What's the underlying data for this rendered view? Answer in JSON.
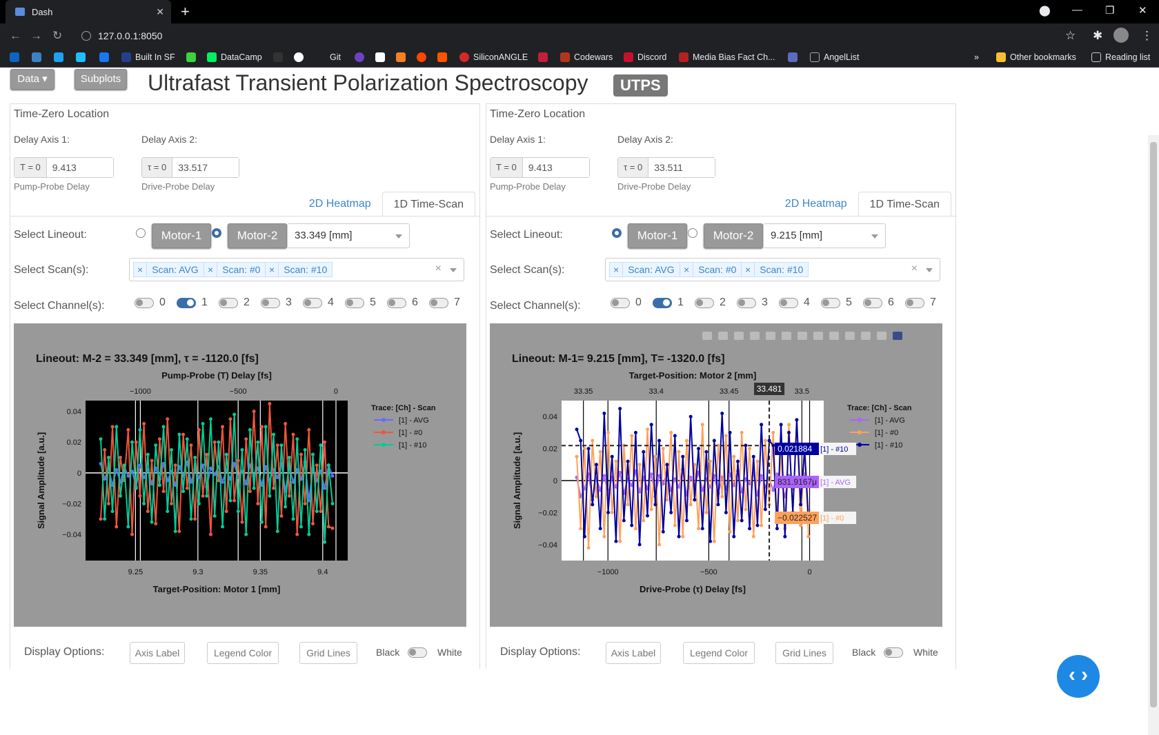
{
  "browser": {
    "tab_title": "Dash",
    "url": "127.0.0.1:8050",
    "bookmarks": [
      "Built In SF",
      "DataCamp",
      "Git",
      "SiliconANGLE",
      "Codewars",
      "Discord",
      "Media Bias Fact Ch...",
      "AngelList",
      "Other bookmarks",
      "Reading list"
    ],
    "more": "»"
  },
  "header": {
    "data_btn": "Data",
    "subplots_btn": "Subplots",
    "title": "Ultrafast Transient Polarization Spectroscopy",
    "badge": "UTPS"
  },
  "panels": [
    {
      "section": "Time-Zero Location",
      "axis1_label": "Delay Axis 1:",
      "axis2_label": "Delay Axis 2:",
      "t0_addon": "T = 0",
      "t0_value": "9.413",
      "t0_hint": "Pump-Probe Delay",
      "tau0_addon": "τ = 0",
      "tau0_value": "33.517",
      "tau0_hint": "Drive-Probe Delay",
      "tab_heatmap": "2D Heatmap",
      "tab_timescan": "1D Time-Scan",
      "lineout_label": "Select Lineout:",
      "motor1": "Motor-1",
      "motor2": "Motor-2",
      "lineout_value": "33.349 [mm]",
      "scans_label": "Select Scan(s):",
      "scans": [
        "Scan: AVG",
        "Scan: #0",
        "Scan: #10"
      ],
      "channels_label": "Select Channel(s):",
      "channels": [
        "0",
        "1",
        "2",
        "3",
        "4",
        "5",
        "6",
        "7"
      ],
      "display_label": "Display Options:",
      "opt_axis": "Axis Label",
      "opt_legend": "Legend Color",
      "opt_grid": "Grid Lines",
      "opt_black": "Black",
      "opt_white": "White"
    },
    {
      "section": "Time-Zero Location",
      "axis1_label": "Delay Axis 1:",
      "axis2_label": "Delay Axis 2:",
      "t0_addon": "T = 0",
      "t0_value": "9.413",
      "t0_hint": "Pump-Probe Delay",
      "tau0_addon": "τ = 0",
      "tau0_value": "33.511",
      "tau0_hint": "Drive-Probe Delay",
      "tab_heatmap": "2D Heatmap",
      "tab_timescan": "1D Time-Scan",
      "lineout_label": "Select Lineout:",
      "motor1": "Motor-1",
      "motor2": "Motor-2",
      "lineout_value": "9.215 [mm]",
      "scans_label": "Select Scan(s):",
      "scans": [
        "Scan: AVG",
        "Scan: #0",
        "Scan: #10"
      ],
      "channels_label": "Select Channel(s):",
      "channels": [
        "0",
        "1",
        "2",
        "3",
        "4",
        "5",
        "6",
        "7"
      ],
      "display_label": "Display Options:",
      "opt_axis": "Axis Label",
      "opt_legend": "Legend Color",
      "opt_grid": "Grid Lines",
      "opt_black": "Black",
      "opt_white": "White"
    }
  ],
  "chart_data": [
    {
      "type": "line",
      "title": "Lineout: M-2 = 33.349 [mm], τ = -1120.0 [fs]",
      "xlabel": "Target-Position: Motor 1 [mm]",
      "x_ticks": [
        "9.25",
        "9.3",
        "9.35",
        "9.4"
      ],
      "xlim": [
        9.21,
        9.42
      ],
      "x2label": "Pump-Probe (T) Delay [fs]",
      "x2_ticks": [
        "−1000",
        "−500",
        "0"
      ],
      "ylabel": "Signal Amplitude [a.u.]",
      "y_ticks": [
        "0.04",
        "0.02",
        "0",
        "−0.02",
        "−0.04"
      ],
      "ylim": [
        -0.057,
        0.047
      ],
      "background": "#000000",
      "grid": true,
      "legend_position": "right",
      "legend_title": "Trace: [Ch] - Scan",
      "series": [
        {
          "name": "[1]  -  AVG",
          "color": "#636efa",
          "values": [
            0.006,
            -0.004,
            0.003,
            -0.008,
            0.002,
            -0.006,
            0.004,
            -0.002,
            0.001,
            -0.009,
            0.005,
            -0.003,
            0.002,
            -0.007,
            0.003,
            -0.004,
            0.006,
            -0.005,
            0.001,
            -0.008,
            0.004,
            -0.002,
            0.007,
            -0.006,
            0.002,
            -0.003,
            0.005,
            -0.009,
            0.003,
            -0.001,
            0.004,
            -0.006,
            0.002,
            -0.004,
            0.006,
            -0.003,
            0.001,
            -0.007,
            0.005,
            -0.002,
            0.003,
            -0.008,
            0.004,
            -0.005,
            0.002,
            -0.003,
            0.006,
            -0.012,
            0.004,
            -0.006,
            0.002,
            -0.004,
            0.007,
            -0.018,
            0.003,
            -0.005,
            0.001,
            -0.01,
            0.005,
            -0.002
          ]
        },
        {
          "name": "[1]  -  #0",
          "color": "#ef553b",
          "values": [
            -0.03,
            0.015,
            -0.02,
            0.03,
            -0.035,
            0.01,
            -0.005,
            0.028,
            -0.04,
            0.02,
            -0.015,
            0.032,
            -0.025,
            0.008,
            -0.033,
            0.022,
            -0.012,
            0.035,
            -0.02,
            0.005,
            -0.038,
            0.025,
            -0.01,
            0.018,
            -0.03,
            0.028,
            -0.015,
            0.012,
            -0.04,
            0.02,
            -0.005,
            0.03,
            -0.025,
            0.035,
            -0.018,
            0.008,
            -0.032,
            0.022,
            -0.012,
            0.04,
            -0.02,
            0.03,
            -0.035,
            0.045,
            -0.01,
            0.018,
            -0.028,
            0.032,
            -0.015,
            0.025,
            -0.04,
            0.012,
            -0.02,
            0.028,
            -0.033,
            0.005,
            -0.025,
            0.02,
            -0.035,
            -0.036
          ]
        },
        {
          "name": "[1]  -  #10",
          "color": "#00cc96",
          "values": [
            0.022,
            -0.03,
            0.01,
            -0.025,
            0.03,
            -0.015,
            0.005,
            -0.035,
            0.02,
            -0.01,
            0.028,
            -0.02,
            0.012,
            -0.032,
            0.018,
            -0.008,
            0.03,
            -0.025,
            0.015,
            -0.038,
            0.025,
            -0.012,
            0.022,
            -0.03,
            0.01,
            -0.02,
            0.032,
            -0.015,
            0.035,
            -0.028,
            0.02,
            -0.035,
            0.012,
            -0.018,
            0.038,
            -0.025,
            0.015,
            -0.04,
            0.028,
            -0.01,
            0.02,
            -0.032,
            0.03,
            -0.015,
            0.025,
            -0.038,
            0.018,
            -0.022,
            0.01,
            -0.03,
            0.022,
            -0.035,
            0.015,
            -0.04,
            0.012,
            -0.025,
            0.018,
            -0.045,
            0.005,
            -0.02
          ]
        }
      ]
    },
    {
      "type": "line",
      "title": "Lineout: M-1= 9.215 [mm], T= -1320.0 [fs]",
      "xlabel": "Drive-Probe (τ) Delay [fs]",
      "x_ticks": [
        "−1000",
        "−500",
        "0"
      ],
      "xlim": [
        -1230,
        70
      ],
      "x2label": "Target-Position: Motor 2 [mm]",
      "x2_ticks": [
        "33.35",
        "33.4",
        "33.45",
        "33.5"
      ],
      "x2_hover": "33.481",
      "ylabel": "Signal Amplitude [a.u.]",
      "y_ticks": [
        "0.04",
        "0.02",
        "0",
        "−0.02",
        "−0.04"
      ],
      "ylim": [
        -0.05,
        0.05
      ],
      "background": "#ffffff",
      "grid": true,
      "legend_position": "right",
      "legend_title": "Trace: [Ch] - Scan",
      "hover_x": -200,
      "hover_labels": [
        {
          "value": "0.021884",
          "trace": "[1]  -  #10",
          "y": 0.021884,
          "color": "#0000a0"
        },
        {
          "value": "831.9167μ",
          "trace": "[1]  -  AVG",
          "y": 0.000832,
          "color": "#ab63fa"
        },
        {
          "value": "−0.022527",
          "trace": "[1]  -  #0",
          "y": -0.022527,
          "color": "#ffa15a"
        }
      ],
      "series": [
        {
          "name": "[1]  -  AVG",
          "color": "#ab63fa",
          "values": [
            0.002,
            -0.01,
            -0.005,
            0.004,
            -0.012,
            0.001,
            -0.006,
            0.003,
            -0.009,
            0.002,
            -0.004,
            0.005,
            -0.008,
            0.001,
            -0.003,
            0.006,
            -0.007,
            0.002,
            -0.005,
            0.004,
            -0.01,
            0.003,
            -0.002,
            0.005,
            -0.006,
            0.001,
            -0.004,
            0.007,
            -0.009,
            0.002,
            -0.003,
            0.005,
            -0.006,
            0.001,
            -0.004,
            0.003,
            -0.008,
            0.002,
            -0.005,
            0.004,
            -0.003,
            0.006,
            -0.007,
            0.001,
            -0.002,
            0.005,
            -0.009,
            0.003,
            -0.004,
            0.001,
            -0.006,
            0.004,
            -0.002,
            -0.01,
            0.003,
            -0.005,
            0.002,
            -0.008,
            0.004,
            -0.003
          ]
        },
        {
          "name": "[1]  -  #0",
          "color": "#ffa15a",
          "values": [
            0.015,
            -0.03,
            0.02,
            -0.042,
            0.025,
            -0.01,
            0.018,
            -0.035,
            0.03,
            -0.02,
            0.012,
            -0.038,
            0.022,
            -0.015,
            0.028,
            -0.03,
            0.01,
            -0.025,
            0.032,
            -0.018,
            0.015,
            -0.04,
            0.02,
            -0.012,
            0.03,
            -0.028,
            0.018,
            -0.035,
            0.025,
            -0.015,
            0.01,
            -0.03,
            0.035,
            -0.02,
            0.012,
            -0.038,
            0.022,
            -0.01,
            0.028,
            -0.032,
            0.015,
            -0.025,
            0.03,
            -0.018,
            0.02,
            -0.035,
            0.012,
            -0.028,
            0.025,
            -0.015,
            0.03,
            -0.022,
            0.018,
            -0.03,
            0.035,
            -0.02,
            0.038,
            -0.028,
            0.02,
            -0.035
          ]
        },
        {
          "name": "[1]  -  #10",
          "color": "#0000a0",
          "values": [
            0.032,
            0.025,
            -0.035,
            0.02,
            -0.015,
            0.01,
            -0.03,
            0.042,
            -0.02,
            0.015,
            -0.038,
            0.045,
            -0.025,
            0.012,
            -0.028,
            0.03,
            -0.04,
            0.018,
            -0.022,
            0.035,
            -0.015,
            0.025,
            -0.032,
            0.01,
            -0.02,
            0.028,
            -0.035,
            0.015,
            -0.025,
            0.04,
            -0.012,
            0.02,
            -0.03,
            0.018,
            -0.038,
            0.025,
            -0.015,
            0.042,
            -0.02,
            0.03,
            -0.035,
            0.012,
            -0.025,
            0.022,
            -0.03,
            0.015,
            -0.028,
            0.035,
            -0.018,
            0.025,
            0.022,
            -0.03,
            0.035,
            -0.035,
            0.03,
            -0.02,
            0.038,
            -0.015,
            0.02,
            -0.025
          ]
        }
      ]
    }
  ]
}
